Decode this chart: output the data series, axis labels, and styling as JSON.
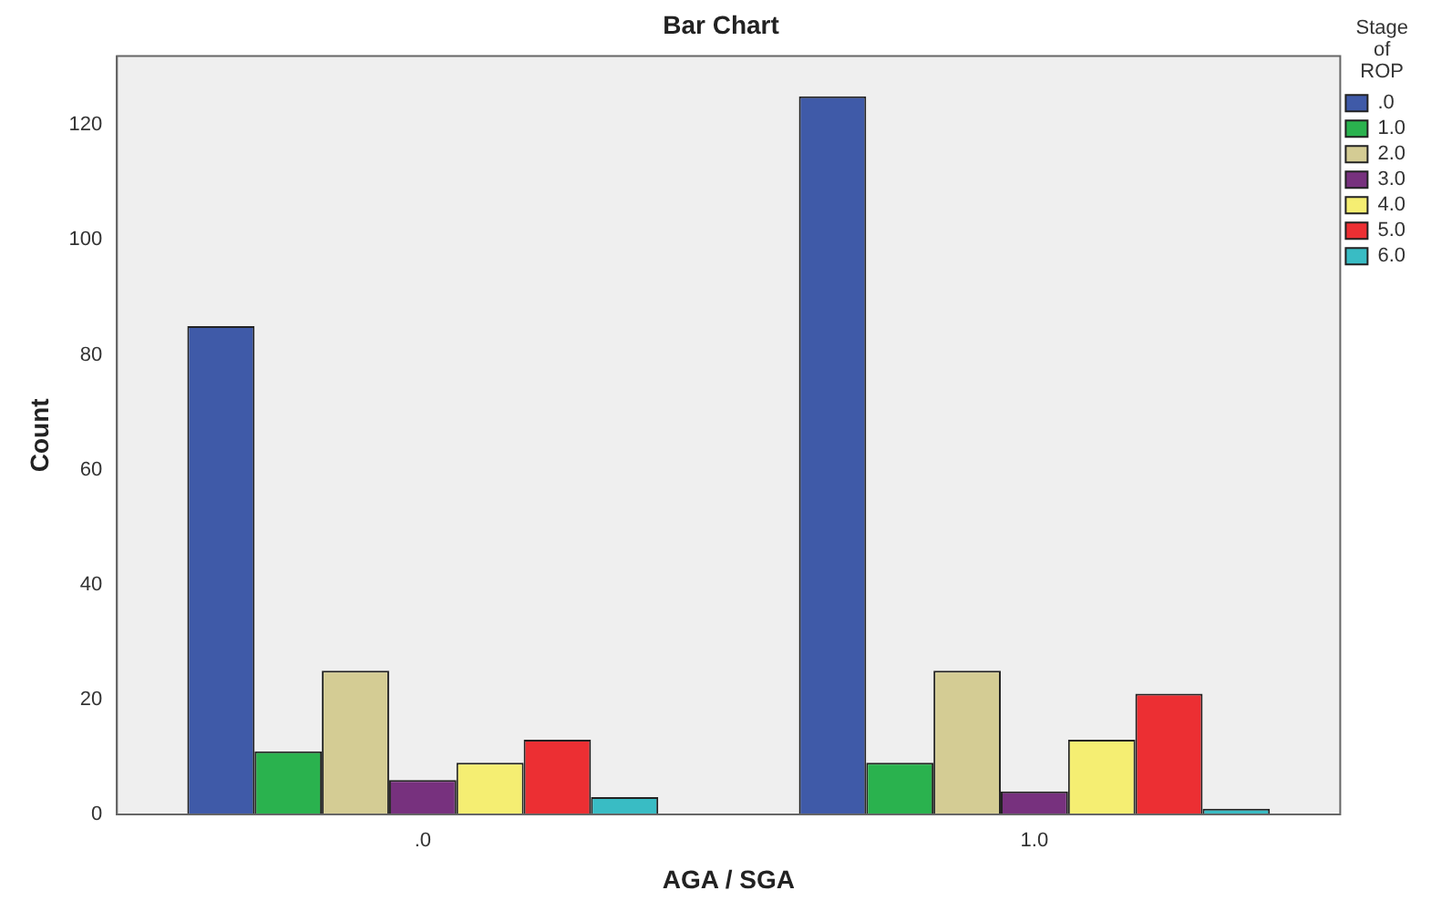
{
  "chart_data": {
    "type": "bar",
    "title": "Bar Chart",
    "xlabel": "AGA / SGA",
    "ylabel": "Count",
    "legend_title": "Stage of ROP",
    "categories": [
      ".0",
      "1.0"
    ],
    "series": [
      {
        "name": ".0",
        "color": "#3f5aa8",
        "values": [
          85,
          125
        ]
      },
      {
        "name": "1.0",
        "color": "#2ab24e",
        "values": [
          11,
          9
        ]
      },
      {
        "name": "2.0",
        "color": "#d4cc94",
        "values": [
          25,
          25
        ]
      },
      {
        "name": "3.0",
        "color": "#77317e",
        "values": [
          6,
          4
        ]
      },
      {
        "name": "4.0",
        "color": "#f5ee72",
        "values": [
          9,
          13
        ]
      },
      {
        "name": "5.0",
        "color": "#ec2f33",
        "values": [
          13,
          21
        ]
      },
      {
        "name": "6.0",
        "color": "#39bcc4",
        "values": [
          3,
          1
        ]
      }
    ],
    "ylim": [
      0,
      132
    ],
    "yticks": [
      0,
      20,
      40,
      60,
      80,
      100,
      120
    ],
    "grid": false,
    "legend": "right"
  }
}
